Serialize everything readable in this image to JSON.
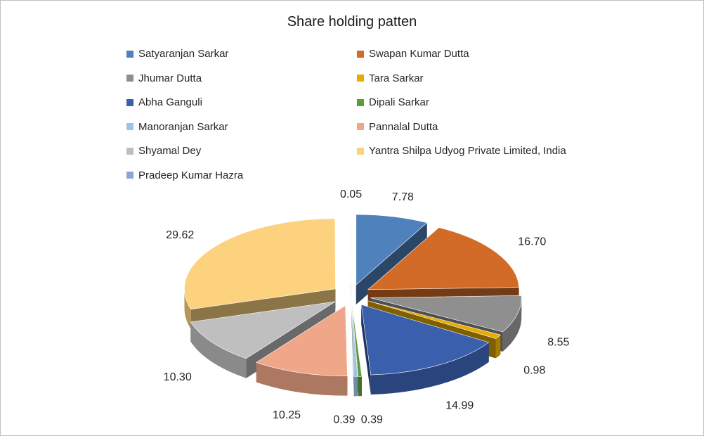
{
  "chart_data": {
    "type": "pie",
    "title": "Share holding patten",
    "three_d": true,
    "exploded": true,
    "legend_position": "top",
    "categories": [
      "Satyaranjan Sarkar",
      "Swapan Kumar Dutta",
      "Jhumar Dutta",
      "Tara Sarkar",
      "Abha Ganguli",
      "Dipali Sarkar",
      "Manoranjan Sarkar",
      "Pannalal Dutta",
      "Shyamal Dey",
      "Yantra Shilpa  Udyog Private Limited,  India",
      "Pradeep Kumar Hazra"
    ],
    "values": [
      7.78,
      16.7,
      8.55,
      0.98,
      14.99,
      0.39,
      0.39,
      10.25,
      10.3,
      29.62,
      0.05
    ],
    "labels": [
      "7.78",
      "16.70",
      "8.55",
      "0.98",
      "14.99",
      "0.39",
      "0.39",
      "10.25",
      "10.30",
      "29.62",
      "0.05"
    ],
    "colors": [
      "#4f81bd",
      "#d26b27",
      "#8f8f8f",
      "#e6ac00",
      "#3a5fad",
      "#5f9b3a",
      "#9dc3e6",
      "#f0a688",
      "#bfbfbf",
      "#fdd27f",
      "#8fa4d8"
    ]
  }
}
